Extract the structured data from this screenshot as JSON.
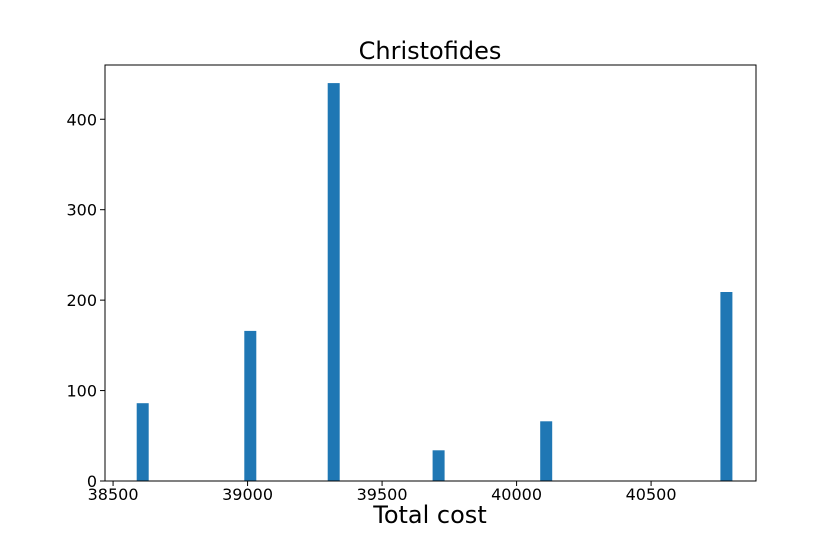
{
  "chart_data": {
    "type": "bar",
    "title": "Christofides",
    "xlabel": "Total cost",
    "ylabel": "",
    "xlim": [
      38470,
      40890
    ],
    "ylim": [
      0,
      460
    ],
    "xticks": [
      38500,
      39000,
      39500,
      40000,
      40500
    ],
    "yticks": [
      0,
      100,
      200,
      300,
      400
    ],
    "bar_color": "#1f77b4",
    "bars": [
      {
        "x": 38610,
        "value": 86
      },
      {
        "x": 39010,
        "value": 166
      },
      {
        "x": 39320,
        "value": 440
      },
      {
        "x": 39710,
        "value": 34
      },
      {
        "x": 40110,
        "value": 66
      },
      {
        "x": 40780,
        "value": 209
      }
    ],
    "grid": false
  }
}
